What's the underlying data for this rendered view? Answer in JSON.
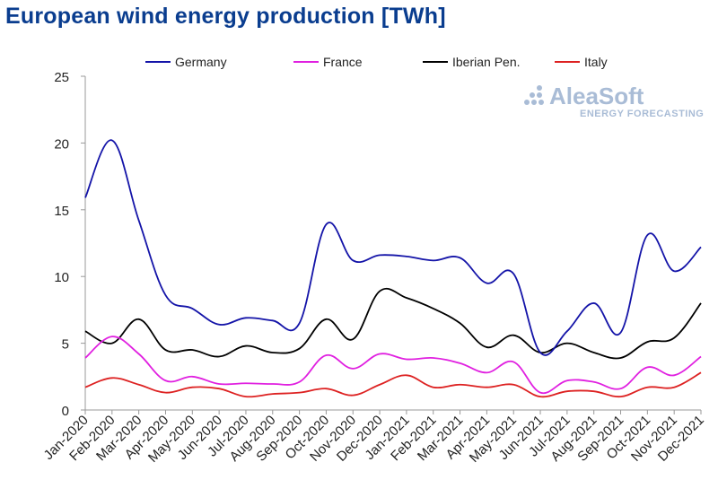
{
  "chart_data": {
    "type": "line",
    "title": "European wind energy production [TWh]",
    "xlabel": "",
    "ylabel": "",
    "ylim": [
      0,
      25
    ],
    "yticks": [
      0,
      5,
      10,
      15,
      20,
      25
    ],
    "categories": [
      "Jan-2020",
      "Feb-2020",
      "Mar-2020",
      "Apr-2020",
      "May-2020",
      "Jun-2020",
      "Jul-2020",
      "Aug-2020",
      "Sep-2020",
      "Oct-2020",
      "Nov-2020",
      "Dec-2020",
      "Jan-2021",
      "Feb-2021",
      "Mar-2021",
      "Apr-2021",
      "May-2021",
      "Jun-2021",
      "Jul-2021",
      "Aug-2021",
      "Sep-2021",
      "Oct-2021",
      "Nov-2021",
      "Dec-2021"
    ],
    "series": [
      {
        "name": "Germany",
        "color": "#1414a8",
        "values": [
          15.9,
          20.2,
          14.2,
          8.6,
          7.6,
          6.4,
          6.9,
          6.7,
          6.5,
          13.9,
          11.2,
          11.6,
          11.5,
          11.2,
          11.4,
          9.5,
          10.2,
          4.3,
          5.9,
          8.0,
          5.8,
          13.1,
          10.4,
          12.2
        ]
      },
      {
        "name": "France",
        "color": "#e020e0",
        "values": [
          3.9,
          5.5,
          4.2,
          2.2,
          2.5,
          1.95,
          2.0,
          1.95,
          2.1,
          4.1,
          3.1,
          4.2,
          3.8,
          3.9,
          3.5,
          2.8,
          3.6,
          1.3,
          2.2,
          2.1,
          1.6,
          3.2,
          2.6,
          4.0
        ]
      },
      {
        "name": "Iberian Pen.",
        "color": "#000000",
        "values": [
          5.9,
          5.0,
          6.8,
          4.5,
          4.5,
          4.0,
          4.8,
          4.3,
          4.6,
          6.8,
          5.3,
          8.9,
          8.4,
          7.6,
          6.5,
          4.7,
          5.6,
          4.3,
          5.0,
          4.3,
          3.9,
          5.1,
          5.4,
          8.0
        ]
      },
      {
        "name": "Italy",
        "color": "#dd2222",
        "values": [
          1.7,
          2.4,
          1.9,
          1.3,
          1.7,
          1.6,
          1.0,
          1.2,
          1.3,
          1.6,
          1.1,
          1.9,
          2.6,
          1.7,
          1.9,
          1.7,
          1.9,
          1.0,
          1.4,
          1.4,
          1.0,
          1.7,
          1.7,
          2.8
        ]
      }
    ],
    "legend_position": "top",
    "grid": false
  },
  "watermark": {
    "name": "AleaSoft",
    "tagline": "ENERGY FORECASTING"
  }
}
